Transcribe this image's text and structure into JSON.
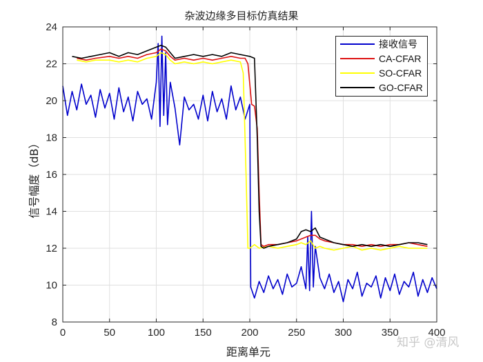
{
  "chart_data": {
    "type": "line",
    "title": "杂波边缘多目标仿真结果",
    "xlabel": "距离单元",
    "ylabel": "信号幅度（dB）",
    "xlim": [
      0,
      400
    ],
    "ylim": [
      8,
      24
    ],
    "xticks": [
      0,
      50,
      100,
      150,
      200,
      250,
      300,
      350,
      400
    ],
    "yticks": [
      8,
      10,
      12,
      14,
      16,
      18,
      20,
      22,
      24
    ],
    "grid": true,
    "legend_position": "upper right",
    "series": [
      {
        "name": "接收信号",
        "color": "#0000cc",
        "x": [
          0,
          5,
          10,
          15,
          20,
          25,
          30,
          35,
          40,
          45,
          50,
          55,
          60,
          65,
          70,
          75,
          80,
          85,
          90,
          95,
          100,
          102,
          104,
          106,
          108,
          110,
          112,
          115,
          120,
          125,
          130,
          135,
          140,
          145,
          150,
          155,
          160,
          165,
          170,
          175,
          180,
          185,
          190,
          195,
          200,
          201,
          205,
          210,
          215,
          220,
          225,
          230,
          235,
          240,
          245,
          250,
          255,
          260,
          262,
          264,
          266,
          268,
          270,
          275,
          280,
          285,
          290,
          295,
          300,
          305,
          310,
          315,
          320,
          325,
          330,
          335,
          340,
          345,
          350,
          355,
          360,
          365,
          370,
          375,
          380,
          385,
          390,
          395,
          400
        ],
        "values": [
          20.8,
          19.2,
          20.5,
          19.5,
          20.9,
          19.8,
          20.3,
          19.1,
          20.6,
          19.6,
          20.4,
          19.0,
          20.7,
          19.4,
          20.2,
          18.9,
          20.5,
          19.8,
          20.1,
          19.0,
          21.0,
          23.1,
          18.6,
          23.5,
          19.2,
          22.6,
          18.7,
          21.0,
          19.6,
          17.6,
          20.2,
          19.5,
          19.8,
          19.0,
          20.3,
          18.9,
          20.5,
          19.4,
          20.1,
          19.0,
          20.8,
          19.5,
          20.2,
          19.0,
          19.8,
          9.9,
          9.3,
          10.2,
          9.6,
          10.5,
          9.8,
          10.3,
          9.5,
          10.6,
          9.9,
          10.1,
          11.0,
          9.8,
          12.6,
          9.7,
          14.0,
          9.9,
          12.1,
          10.4,
          9.8,
          10.6,
          9.6,
          10.2,
          9.1,
          10.3,
          9.8,
          10.7,
          9.4,
          10.1,
          9.9,
          10.5,
          9.3,
          10.4,
          9.7,
          10.6,
          9.5,
          10.2,
          9.9,
          10.7,
          9.4,
          10.3,
          9.6,
          10.4,
          9.8
        ]
      },
      {
        "name": "CA-CFAR",
        "color": "#dd1111",
        "x": [
          15,
          25,
          35,
          50,
          60,
          70,
          80,
          90,
          100,
          105,
          110,
          115,
          120,
          130,
          140,
          150,
          160,
          170,
          180,
          190,
          195,
          198,
          202,
          205,
          208,
          210,
          212,
          215,
          220,
          230,
          240,
          250,
          255,
          260,
          265,
          270,
          275,
          280,
          290,
          300,
          310,
          320,
          330,
          340,
          350,
          360,
          370,
          380,
          390
        ],
        "values": [
          22.3,
          22.2,
          22.3,
          22.4,
          22.3,
          22.4,
          22.3,
          22.5,
          22.6,
          22.8,
          22.7,
          22.4,
          22.2,
          22.3,
          22.2,
          22.3,
          22.2,
          22.3,
          22.4,
          22.3,
          22.3,
          22.0,
          19.8,
          19.7,
          18.5,
          15.0,
          12.2,
          12.1,
          12.2,
          12.2,
          12.3,
          12.4,
          12.5,
          12.6,
          12.7,
          12.7,
          12.5,
          12.4,
          12.3,
          12.2,
          12.2,
          12.1,
          12.2,
          12.1,
          12.2,
          12.2,
          12.3,
          12.2,
          12.1
        ]
      },
      {
        "name": "SO-CFAR",
        "color": "#ffff00",
        "x": [
          15,
          25,
          35,
          50,
          60,
          70,
          80,
          90,
          100,
          105,
          110,
          115,
          120,
          130,
          140,
          150,
          160,
          170,
          180,
          190,
          193,
          196,
          198,
          200,
          205,
          210,
          220,
          230,
          240,
          250,
          255,
          260,
          265,
          270,
          275,
          280,
          290,
          300,
          310,
          320,
          330,
          340,
          350,
          360,
          370,
          380,
          390
        ],
        "values": [
          22.2,
          22.1,
          22.2,
          22.2,
          22.1,
          22.2,
          22.1,
          22.3,
          22.4,
          22.6,
          22.5,
          22.2,
          22.0,
          22.1,
          22.0,
          22.1,
          22.0,
          22.1,
          22.2,
          22.1,
          21.5,
          16.0,
          12.0,
          12.0,
          12.2,
          12.0,
          12.1,
          12.0,
          12.1,
          12.2,
          12.3,
          12.2,
          12.4,
          12.0,
          12.1,
          12.0,
          11.9,
          12.0,
          12.1,
          11.9,
          12.0,
          11.9,
          12.0,
          12.1,
          12.0,
          12.0,
          12.0
        ]
      },
      {
        "name": "GO-CFAR",
        "color": "#000000",
        "x": [
          10,
          20,
          30,
          40,
          50,
          60,
          70,
          80,
          90,
          100,
          105,
          110,
          115,
          120,
          130,
          140,
          150,
          160,
          170,
          180,
          190,
          200,
          205,
          208,
          210,
          212,
          215,
          220,
          230,
          240,
          250,
          255,
          260,
          265,
          270,
          275,
          280,
          290,
          300,
          310,
          320,
          330,
          340,
          350,
          360,
          370,
          380,
          390
        ],
        "values": [
          22.4,
          22.3,
          22.4,
          22.5,
          22.6,
          22.4,
          22.6,
          22.5,
          22.7,
          22.9,
          23.0,
          22.9,
          22.6,
          22.3,
          22.4,
          22.5,
          22.4,
          22.5,
          22.4,
          22.6,
          22.5,
          22.4,
          22.3,
          18.0,
          14.0,
          12.1,
          12.0,
          12.1,
          12.2,
          12.3,
          12.5,
          12.9,
          13.0,
          12.9,
          13.1,
          12.6,
          12.5,
          12.3,
          12.2,
          12.1,
          12.2,
          12.1,
          12.2,
          12.1,
          12.2,
          12.3,
          12.3,
          12.2
        ]
      }
    ]
  },
  "watermark": "知乎 @清风"
}
